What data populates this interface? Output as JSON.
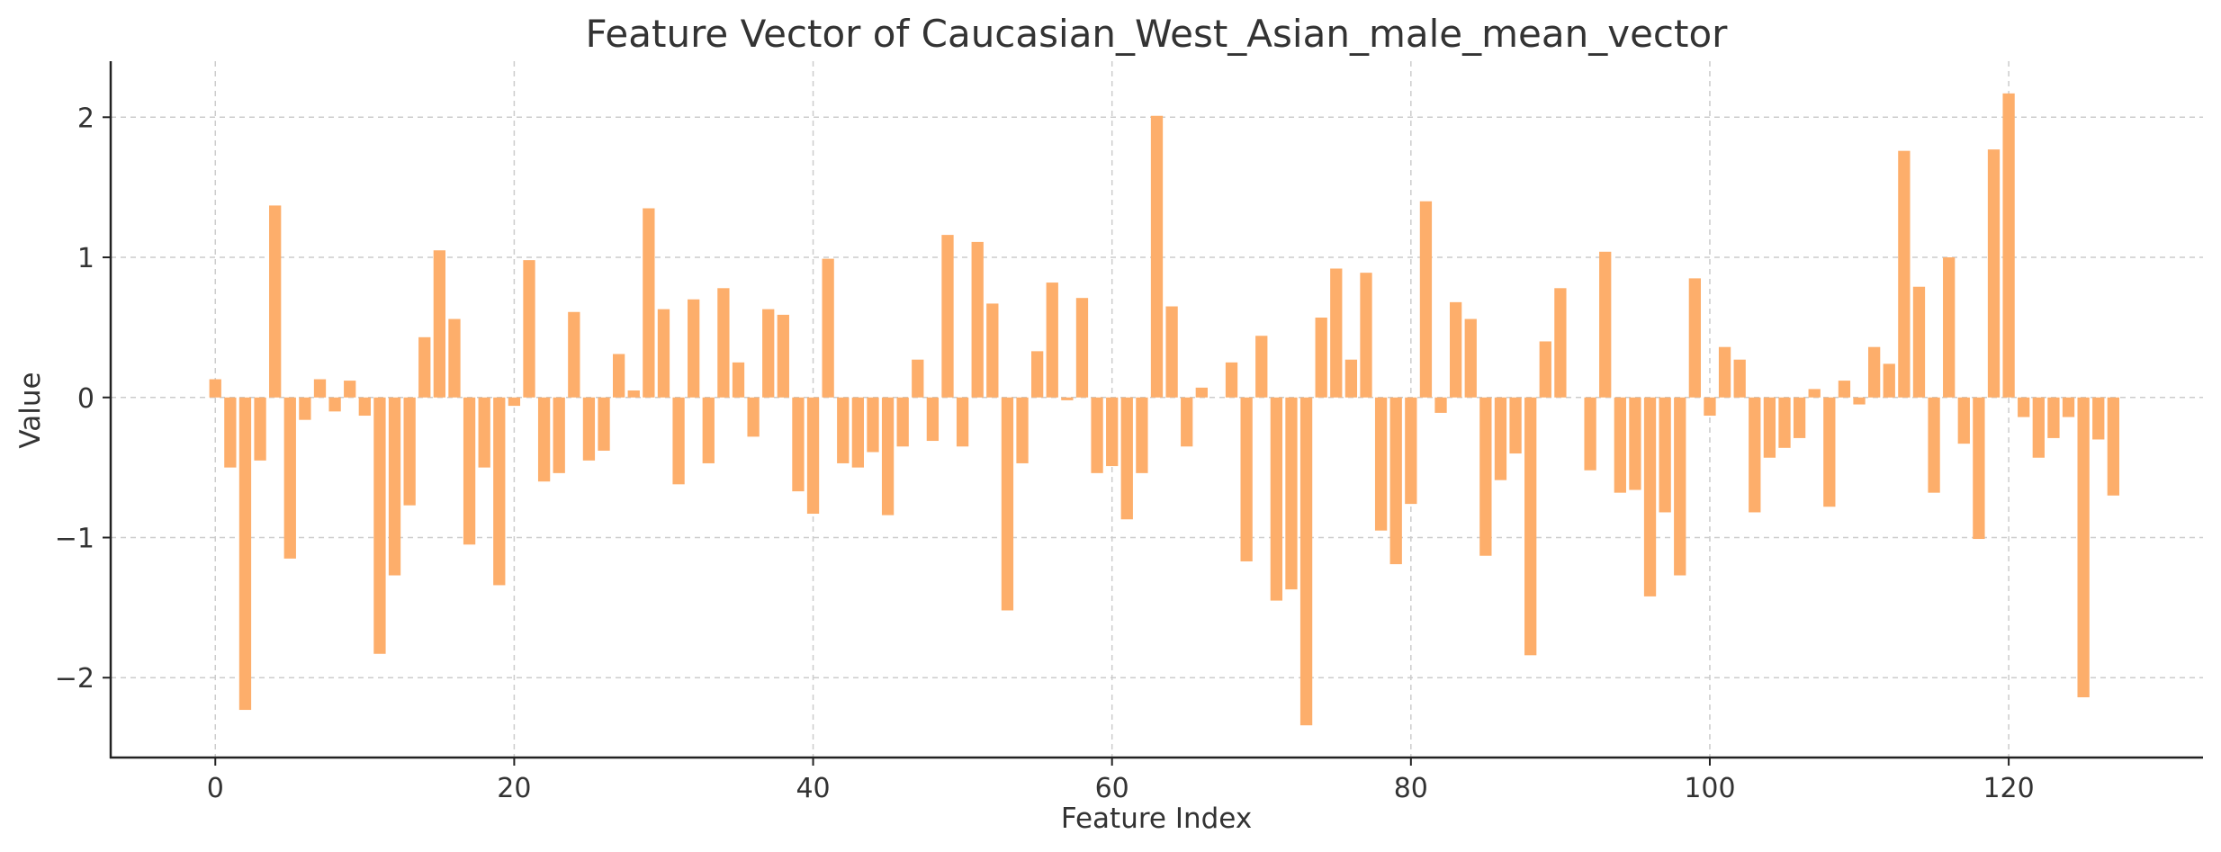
{
  "chart_data": {
    "type": "bar",
    "title": "Feature Vector of Caucasian_West_Asian_male_mean_vector",
    "xlabel": "Feature Index",
    "ylabel": "Value",
    "xlim": [
      -7,
      133
    ],
    "ylim": [
      -2.57,
      2.4
    ],
    "xticks": [
      0,
      20,
      40,
      60,
      80,
      100,
      120
    ],
    "xtick_labels": [
      "0",
      "20",
      "40",
      "60",
      "80",
      "100",
      "120"
    ],
    "yticks": [
      -2,
      -1,
      0,
      1,
      2
    ],
    "ytick_labels": [
      "−2",
      "−1",
      "0",
      "1",
      "2"
    ],
    "grid": true,
    "bar_color": "#fdae6b",
    "x": [
      0,
      1,
      2,
      3,
      4,
      5,
      6,
      7,
      8,
      9,
      10,
      11,
      12,
      13,
      14,
      15,
      16,
      17,
      18,
      19,
      20,
      21,
      22,
      23,
      24,
      25,
      26,
      27,
      28,
      29,
      30,
      31,
      32,
      33,
      34,
      35,
      36,
      37,
      38,
      39,
      40,
      41,
      42,
      43,
      44,
      45,
      46,
      47,
      48,
      49,
      50,
      51,
      52,
      53,
      54,
      55,
      56,
      57,
      58,
      59,
      60,
      61,
      62,
      63,
      64,
      65,
      66,
      67,
      68,
      69,
      70,
      71,
      72,
      73,
      74,
      75,
      76,
      77,
      78,
      79,
      80,
      81,
      82,
      83,
      84,
      85,
      86,
      87,
      88,
      89,
      90,
      91,
      92,
      93,
      94,
      95,
      96,
      97,
      98,
      99,
      100,
      101,
      102,
      103,
      104,
      105,
      106,
      107,
      108,
      109,
      110,
      111,
      112,
      113,
      114,
      115,
      116,
      117,
      118,
      119,
      120,
      121,
      122,
      123,
      124,
      125,
      126,
      127
    ],
    "values": [
      0.13,
      -0.5,
      -2.23,
      -0.45,
      1.37,
      -1.15,
      -0.16,
      0.13,
      -0.1,
      0.12,
      -0.13,
      -1.83,
      -1.27,
      -0.77,
      0.43,
      1.05,
      0.56,
      -1.05,
      -0.5,
      -1.34,
      -0.06,
      0.98,
      -0.6,
      -0.54,
      0.61,
      -0.45,
      -0.38,
      0.31,
      0.05,
      1.35,
      0.63,
      -0.62,
      0.7,
      -0.47,
      0.78,
      0.25,
      -0.28,
      0.63,
      0.59,
      -0.67,
      -0.83,
      0.99,
      -0.47,
      -0.5,
      -0.39,
      -0.84,
      -0.35,
      0.27,
      -0.31,
      1.16,
      -0.35,
      1.11,
      0.67,
      -1.52,
      -0.47,
      0.33,
      0.82,
      -0.02,
      0.71,
      -0.54,
      -0.49,
      -0.87,
      -0.54,
      2.01,
      0.65,
      -0.35,
      0.07,
      0.0,
      0.25,
      -1.17,
      0.44,
      -1.45,
      -1.37,
      -2.34,
      0.57,
      0.92,
      0.27,
      0.89,
      -0.95,
      -1.19,
      -0.76,
      1.4,
      -0.11,
      0.68,
      0.56,
      -1.13,
      -0.59,
      -0.4,
      -1.84,
      0.4,
      0.78,
      0.0,
      -0.52,
      1.04,
      -0.68,
      -0.66,
      -1.42,
      -0.82,
      -1.27,
      0.85,
      -0.13,
      0.36,
      0.27,
      -0.82,
      -0.43,
      -0.36,
      -0.29,
      0.06,
      -0.78,
      0.12,
      -0.05,
      0.36,
      0.24,
      1.76,
      0.79,
      -0.68,
      1.0,
      -0.33,
      -1.01,
      1.77,
      2.17,
      -0.14,
      -0.43,
      -0.29,
      -0.14,
      -2.14,
      -0.3,
      -0.7
    ]
  }
}
